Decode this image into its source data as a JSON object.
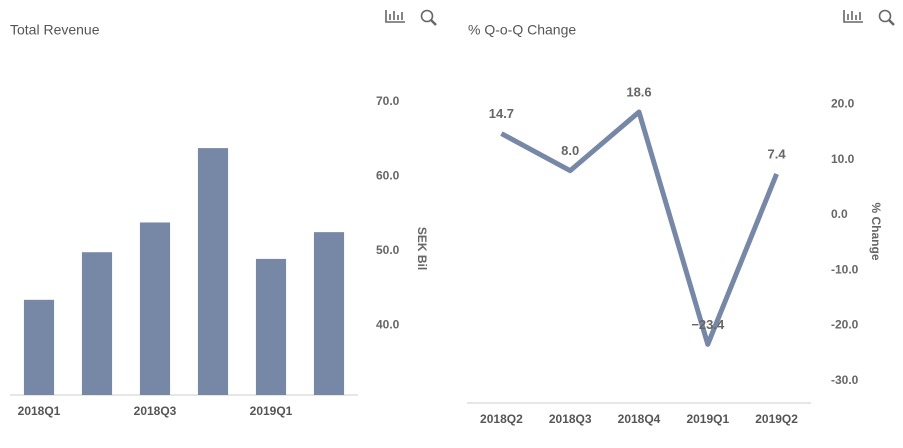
{
  "chart_data": [
    {
      "type": "bar",
      "title": "Total Revenue",
      "categories": [
        "2018Q1",
        null,
        "2018Q3",
        null,
        "2019Q1",
        null
      ],
      "values": [
        43.4,
        49.8,
        53.8,
        63.8,
        48.9,
        52.5
      ],
      "color": "#7788a6",
      "ylim": [
        30.6,
        70
      ],
      "yticks": [
        {
          "value": 40,
          "label": "40.0"
        },
        {
          "value": 50,
          "label": "50.0"
        },
        {
          "value": 60,
          "label": "60.0"
        },
        {
          "value": 70,
          "label": "70.0"
        }
      ],
      "ylabel": "SEK Bil"
    },
    {
      "type": "line",
      "title": "% Q-o-Q Change",
      "categories": [
        "2018Q2",
        "2018Q3",
        "2018Q4",
        "2019Q1",
        "2019Q2"
      ],
      "values": [
        14.7,
        8.0,
        18.6,
        -23.4,
        7.4
      ],
      "value_labels": [
        "14.7",
        "8.0",
        "18.6",
        "−23.4",
        "7.4"
      ],
      "color": "#7788a6",
      "ylim": [
        -34,
        28
      ],
      "yticks": [
        {
          "value": -30,
          "label": "-30.0"
        },
        {
          "value": -20,
          "label": "-20.0"
        },
        {
          "value": -10,
          "label": "-10.0"
        },
        {
          "value": 0,
          "label": "0.0"
        },
        {
          "value": 10,
          "label": "10.0"
        },
        {
          "value": 20,
          "label": "20.0"
        }
      ],
      "ylabel": "% Change"
    }
  ]
}
